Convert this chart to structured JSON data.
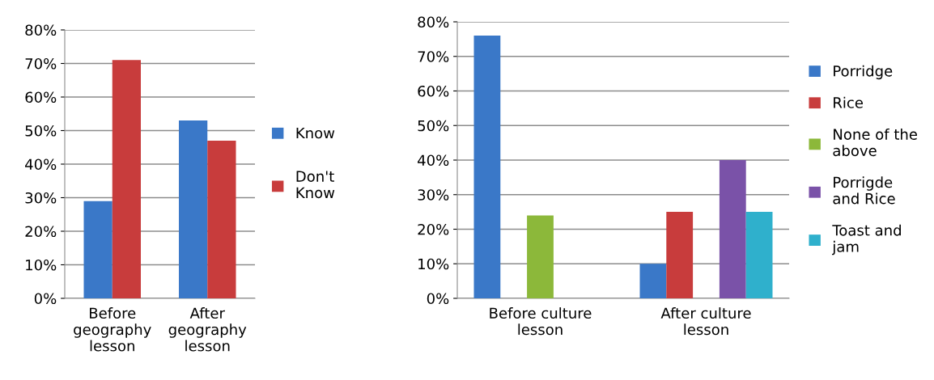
{
  "chart_data": [
    {
      "type": "bar",
      "categories": [
        "Before\ngeography\nlesson",
        "After\ngeography\nlesson"
      ],
      "series": [
        {
          "name": "Know",
          "color": "#3a78c8",
          "values": [
            29,
            53
          ]
        },
        {
          "name": "Don't\nKnow",
          "color": "#c83c3c",
          "values": [
            71,
            47
          ]
        }
      ],
      "ylim": [
        0,
        80
      ],
      "yticks": [
        {
          "value": 0,
          "label": "0%"
        },
        {
          "value": 10,
          "label": "10%"
        },
        {
          "value": 20,
          "label": "20%"
        },
        {
          "value": 30,
          "label": "30%"
        },
        {
          "value": 40,
          "label": "40%"
        },
        {
          "value": 50,
          "label": "50%"
        },
        {
          "value": 60,
          "label": "60%"
        },
        {
          "value": 70,
          "label": "70%"
        },
        {
          "value": 80,
          "label": "80%"
        }
      ],
      "grid": "y",
      "legend": "right"
    },
    {
      "type": "bar",
      "categories": [
        "Before culture\nlesson",
        "After culture\nlesson"
      ],
      "series": [
        {
          "name": "Porridge",
          "color": "#3a78c8",
          "values": [
            76,
            10
          ]
        },
        {
          "name": "Rice",
          "color": "#c83c3c",
          "values": [
            null,
            25
          ]
        },
        {
          "name": "None of the\nabove",
          "color": "#8cb83a",
          "values": [
            24,
            null
          ]
        },
        {
          "name": "Porrigde\nand Rice",
          "color": "#7a52a8",
          "values": [
            null,
            40
          ]
        },
        {
          "name": "Toast and\njam",
          "color": "#2fb0cc",
          "values": [
            null,
            25
          ]
        }
      ],
      "ylim": [
        0,
        80
      ],
      "yticks": [
        {
          "value": 0,
          "label": "0%"
        },
        {
          "value": 10,
          "label": "10%"
        },
        {
          "value": 20,
          "label": "20%"
        },
        {
          "value": 30,
          "label": "30%"
        },
        {
          "value": 40,
          "label": "40%"
        },
        {
          "value": 50,
          "label": "50%"
        },
        {
          "value": 60,
          "label": "60%"
        },
        {
          "value": 70,
          "label": "70%"
        },
        {
          "value": 80,
          "label": "80%"
        }
      ],
      "grid": "y",
      "legend": "right"
    }
  ]
}
